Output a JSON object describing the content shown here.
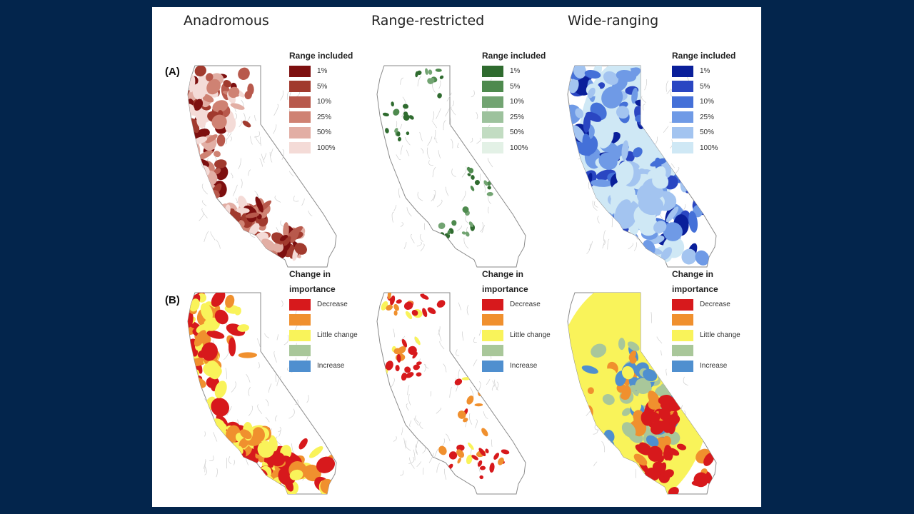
{
  "columns": [
    {
      "title": "Anadromous"
    },
    {
      "title": "Range-restricted"
    },
    {
      "title": "Wide-ranging"
    }
  ],
  "panel_labels": {
    "a": "(A)",
    "b": "(B)"
  },
  "legend_a": {
    "title": "Range included",
    "labels": [
      "1%",
      "5%",
      "10%",
      "25%",
      "50%",
      "100%"
    ],
    "palettes": {
      "anadromous": [
        "#7d0f0f",
        "#a13a2e",
        "#b8594c",
        "#cf8273",
        "#e2aea4",
        "#f4dbd7"
      ],
      "range_restricted": [
        "#2f6b2f",
        "#4e8a4e",
        "#72a472",
        "#9dc29d",
        "#c2dcc2",
        "#e3f1e6"
      ],
      "wide_ranging": [
        "#0a1f9a",
        "#2a46c2",
        "#4470d8",
        "#6f9ae6",
        "#a3c4f0",
        "#cfe8f5"
      ]
    }
  },
  "legend_b": {
    "title_line1": "Change in",
    "title_line2": "importance",
    "labels": [
      "Decrease",
      "",
      "Little change",
      "",
      "Increase"
    ],
    "colors": [
      "#d7191c",
      "#f0902e",
      "#f9f35a",
      "#a9c79a",
      "#4f8fcf"
    ]
  }
}
